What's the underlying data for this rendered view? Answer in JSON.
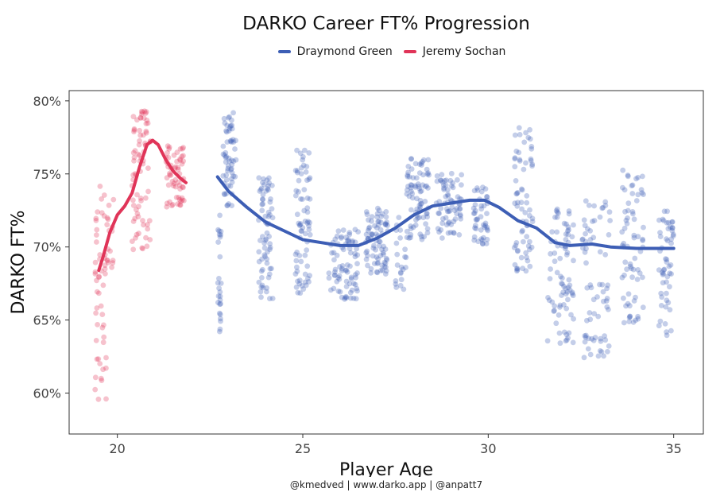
{
  "chart_data": {
    "type": "scatter",
    "title": "DARKO Career FT% Progression",
    "xlabel": "Player Age",
    "ylabel": "DARKO FT%",
    "xlim": [
      18.7,
      35.8
    ],
    "ylim": [
      0.572,
      0.807
    ],
    "x_ticks": [
      20,
      25,
      30,
      35
    ],
    "y_ticks": [
      0.6,
      0.65,
      0.7,
      0.75,
      0.8
    ],
    "y_tick_labels": [
      "60%",
      "65%",
      "70%",
      "75%",
      "80%"
    ],
    "legend_position": "top",
    "grid": false,
    "point_opacity": 0.3,
    "series": [
      {
        "name": "Draymond Green",
        "color": "#3d5eb5",
        "trend": [
          [
            22.7,
            0.748
          ],
          [
            23.0,
            0.738
          ],
          [
            23.5,
            0.727
          ],
          [
            24.0,
            0.717
          ],
          [
            24.5,
            0.711
          ],
          [
            25.0,
            0.705
          ],
          [
            25.5,
            0.703
          ],
          [
            26.0,
            0.701
          ],
          [
            26.5,
            0.701
          ],
          [
            27.0,
            0.706
          ],
          [
            27.5,
            0.713
          ],
          [
            28.0,
            0.722
          ],
          [
            28.5,
            0.728
          ],
          [
            29.0,
            0.73
          ],
          [
            29.5,
            0.732
          ],
          [
            29.9,
            0.732
          ],
          [
            30.3,
            0.727
          ],
          [
            30.8,
            0.718
          ],
          [
            31.3,
            0.713
          ],
          [
            31.8,
            0.703
          ],
          [
            32.2,
            0.701
          ],
          [
            32.8,
            0.702
          ],
          [
            33.3,
            0.7
          ],
          [
            34.0,
            0.699
          ],
          [
            35.0,
            0.699
          ]
        ],
        "clusters": [
          {
            "x": [
              22.7,
              22.8
            ],
            "lo": 0.634,
            "hi": 0.722,
            "n": 26
          },
          {
            "x": [
              22.85,
              23.2
            ],
            "lo": 0.728,
            "hi": 0.792,
            "n": 60
          },
          {
            "x": [
              23.8,
              24.2
            ],
            "lo": 0.662,
            "hi": 0.748,
            "n": 70
          },
          {
            "x": [
              24.8,
              25.2
            ],
            "lo": 0.668,
            "hi": 0.768,
            "n": 72
          },
          {
            "x": [
              25.7,
              26.5
            ],
            "lo": 0.664,
            "hi": 0.712,
            "n": 80
          },
          {
            "x": [
              26.7,
              27.3
            ],
            "lo": 0.681,
            "hi": 0.728,
            "n": 80
          },
          {
            "x": [
              27.5,
              27.8
            ],
            "lo": 0.671,
            "hi": 0.726,
            "n": 22
          },
          {
            "x": [
              27.8,
              28.4
            ],
            "lo": 0.704,
            "hi": 0.762,
            "n": 80
          },
          {
            "x": [
              28.6,
              29.3
            ],
            "lo": 0.706,
            "hi": 0.752,
            "n": 70
          },
          {
            "x": [
              29.6,
              30.0
            ],
            "lo": 0.702,
            "hi": 0.742,
            "n": 45
          },
          {
            "x": [
              30.7,
              31.2
            ],
            "lo": 0.682,
            "hi": 0.782,
            "n": 70
          },
          {
            "x": [
              31.6,
              32.3
            ],
            "lo": 0.634,
            "hi": 0.734,
            "n": 80
          },
          {
            "x": [
              32.5,
              33.3
            ],
            "lo": 0.624,
            "hi": 0.732,
            "n": 70
          },
          {
            "x": [
              33.6,
              34.2
            ],
            "lo": 0.648,
            "hi": 0.754,
            "n": 70
          },
          {
            "x": [
              34.6,
              35.0
            ],
            "lo": 0.638,
            "hi": 0.73,
            "n": 55
          }
        ]
      },
      {
        "name": "Jeremy Sochan",
        "color": "#e03458",
        "trend": [
          [
            19.5,
            0.684
          ],
          [
            19.6,
            0.692
          ],
          [
            19.8,
            0.71
          ],
          [
            20.0,
            0.722
          ],
          [
            20.2,
            0.728
          ],
          [
            20.4,
            0.737
          ],
          [
            20.6,
            0.755
          ],
          [
            20.8,
            0.77
          ],
          [
            20.95,
            0.773
          ],
          [
            21.1,
            0.77
          ],
          [
            21.3,
            0.76
          ],
          [
            21.5,
            0.752
          ],
          [
            21.7,
            0.747
          ],
          [
            21.85,
            0.744
          ]
        ],
        "clusters": [
          {
            "x": [
              19.4,
              19.7
            ],
            "lo": 0.581,
            "hi": 0.742,
            "n": 50
          },
          {
            "x": [
              19.7,
              19.9
            ],
            "lo": 0.684,
            "hi": 0.742,
            "n": 16
          },
          {
            "x": [
              20.4,
              20.9
            ],
            "lo": 0.698,
            "hi": 0.793,
            "n": 75
          },
          {
            "x": [
              21.3,
              21.8
            ],
            "lo": 0.727,
            "hi": 0.77,
            "n": 60
          }
        ]
      }
    ]
  },
  "caption": "@kmedved | www.darko.app | @anpatt7"
}
